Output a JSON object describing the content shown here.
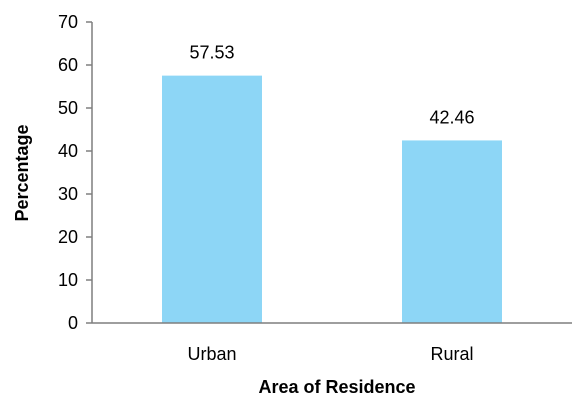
{
  "chart_data": {
    "type": "bar",
    "categories": [
      "Urban",
      "Rural"
    ],
    "values": [
      57.53,
      42.46
    ],
    "data_labels": [
      "57.53",
      "42.46"
    ],
    "title": "",
    "xlabel": "Area of Residence",
    "ylabel": "Percentage",
    "ylim": [
      0,
      70
    ],
    "yticks": [
      "0",
      "10",
      "20",
      "30",
      "40",
      "50",
      "60",
      "70"
    ],
    "grid": false,
    "legend": "none",
    "bar_color": "#8dd6f6",
    "axis_color": "#7f7f7f"
  }
}
